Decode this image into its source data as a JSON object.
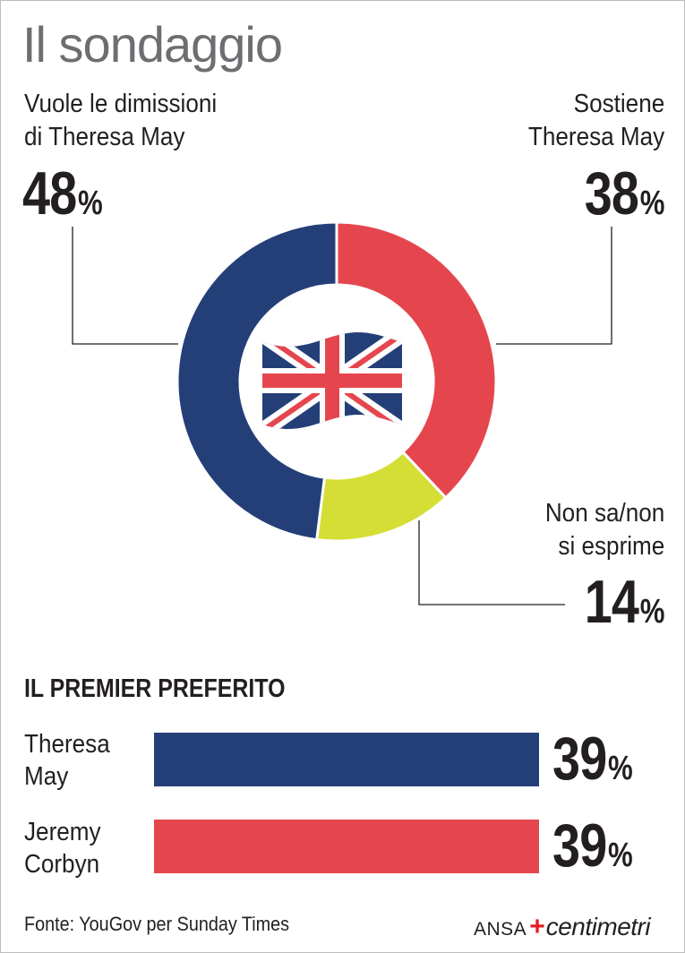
{
  "title": "Il sondaggio",
  "colors": {
    "blue": "#243f78",
    "red": "#e5464e",
    "yellow": "#d4de34"
  },
  "chart_data": [
    {
      "type": "pie",
      "style": "donut",
      "center_icon": "union-jack-flag-icon",
      "slices": [
        {
          "label_line1": "Vuole le dimissioni",
          "label_line2": "di Theresa May",
          "value": 48,
          "pct_symbol": "%",
          "color": "#243f78"
        },
        {
          "label_line1": "Sostiene",
          "label_line2": "Theresa May",
          "value": 38,
          "pct_symbol": "%",
          "color": "#e5464e"
        },
        {
          "label_line1": "Non sa/non",
          "label_line2": "si esprime",
          "value": 14,
          "pct_symbol": "%",
          "color": "#d4de34"
        }
      ]
    },
    {
      "type": "bar",
      "orientation": "horizontal",
      "title": "IL PREMIER PREFERITO",
      "xlim": [
        0,
        39
      ],
      "bars": [
        {
          "name_line1": "Theresa",
          "name_line2": "May",
          "value": 39,
          "pct_symbol": "%",
          "color": "#243f78"
        },
        {
          "name_line1": "Jeremy",
          "name_line2": "Corbyn",
          "value": 39,
          "pct_symbol": "%",
          "color": "#e5464e"
        }
      ]
    }
  ],
  "footer": {
    "source": "Fonte: YouGov per Sunday Times",
    "brand_ansa": "ANSA",
    "brand_cross": "+",
    "brand_centimetri": "centimetri"
  }
}
